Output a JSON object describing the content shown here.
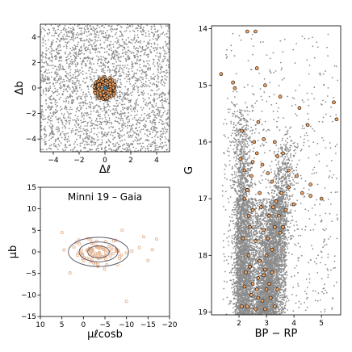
{
  "chart_data": [
    {
      "type": "scatter",
      "panel": "spatial",
      "xlabel": "Δℓ",
      "ylabel": "Δb",
      "xlim": [
        -5,
        5
      ],
      "ylim": [
        -5,
        5
      ],
      "xticks": [
        -4,
        -2,
        0,
        2,
        4
      ],
      "yticks": [
        -4,
        -2,
        0,
        2,
        4
      ],
      "field_color": "#8c8c8c",
      "member_color": "#f4a460",
      "member_edge": "#000000",
      "center_marker_color": "#1f77b4",
      "member_region_radius": 0.9
    },
    {
      "type": "scatter",
      "panel": "proper-motion",
      "title": "Minni 19  –  Gaia",
      "xlabel": "μℓcosb",
      "ylabel": "μb",
      "xlim": [
        10,
        -20
      ],
      "ylim": [
        -15,
        15
      ],
      "xticks": [
        10,
        5,
        0,
        -5,
        -10,
        -15,
        -20
      ],
      "yticks": [
        -15,
        -10,
        -5,
        0,
        5,
        10,
        15
      ],
      "member_center": [
        -3.5,
        0.0
      ],
      "contours": [
        {
          "rx": 2.5,
          "ry": 1.4
        },
        {
          "rx": 4.5,
          "ry": 2.3
        },
        {
          "rx": 7.0,
          "ry": 3.4
        }
      ],
      "point_color": "#e6b490",
      "contour_color": "#555566",
      "outliers": [
        [
          -17,
          3.0
        ],
        [
          -14,
          3.5
        ],
        [
          -13,
          1.0
        ],
        [
          -10,
          -11.5
        ],
        [
          -15,
          -2.0
        ],
        [
          -9,
          5.0
        ],
        [
          5,
          4.5
        ],
        [
          -16,
          0.5
        ]
      ]
    },
    {
      "type": "scatter",
      "panel": "cmd",
      "xlabel": "BP − RP",
      "ylabel": "G",
      "xlim": [
        1.0,
        5.7
      ],
      "ylim": [
        19.05,
        13.95
      ],
      "xticks": [
        2,
        3,
        4,
        5
      ],
      "yticks": [
        14,
        15,
        16,
        17,
        18,
        19
      ],
      "field_color": "#8c8c8c",
      "member_color": "#f4a460",
      "members": [
        [
          1.35,
          14.8
        ],
        [
          1.78,
          14.95
        ],
        [
          1.85,
          15.05
        ],
        [
          2.3,
          14.05
        ],
        [
          2.6,
          14.05
        ],
        [
          2.65,
          14.7
        ],
        [
          2.95,
          15.0
        ],
        [
          3.5,
          15.2
        ],
        [
          4.2,
          15.4
        ],
        [
          4.5,
          15.7
        ],
        [
          5.45,
          15.3
        ],
        [
          5.55,
          15.6
        ],
        [
          2.1,
          15.8
        ],
        [
          2.7,
          15.65
        ],
        [
          2.9,
          15.95
        ],
        [
          3.3,
          16.0
        ],
        [
          3.4,
          16.25
        ],
        [
          3.6,
          16.2
        ],
        [
          3.8,
          16.5
        ],
        [
          4.1,
          16.6
        ],
        [
          4.3,
          16.9
        ],
        [
          4.6,
          16.95
        ],
        [
          5.0,
          17.0
        ],
        [
          4.6,
          16.75
        ],
        [
          4.0,
          17.1
        ],
        [
          3.8,
          16.8
        ],
        [
          3.55,
          16.9
        ],
        [
          3.2,
          16.7
        ],
        [
          2.85,
          16.4
        ],
        [
          2.65,
          16.2
        ],
        [
          2.2,
          16.5
        ],
        [
          2.45,
          16.6
        ],
        [
          2.75,
          16.9
        ],
        [
          3.1,
          17.3
        ],
        [
          3.3,
          17.5
        ],
        [
          3.45,
          17.3
        ],
        [
          3.5,
          17.6
        ],
        [
          3.2,
          17.9
        ],
        [
          3.0,
          18.0
        ],
        [
          2.9,
          17.55
        ],
        [
          2.6,
          17.75
        ],
        [
          2.35,
          18.0
        ],
        [
          2.25,
          18.3
        ],
        [
          2.5,
          18.5
        ],
        [
          2.7,
          18.4
        ],
        [
          2.85,
          18.8
        ],
        [
          3.0,
          18.6
        ],
        [
          3.2,
          18.3
        ],
        [
          3.3,
          18.9
        ],
        [
          2.6,
          18.95
        ],
        [
          2.3,
          18.9
        ],
        [
          2.1,
          18.9
        ],
        [
          2.45,
          18.7
        ],
        [
          2.75,
          18.1
        ],
        [
          3.1,
          18.5
        ],
        [
          2.95,
          18.25
        ],
        [
          2.5,
          17.2
        ],
        [
          2.4,
          17.5
        ],
        [
          2.2,
          17.0
        ],
        [
          2.3,
          16.85
        ],
        [
          2.05,
          16.3
        ],
        [
          3.35,
          17.05
        ],
        [
          3.7,
          17.2
        ],
        [
          3.05,
          16.55
        ],
        [
          2.55,
          16.0
        ],
        [
          2.15,
          17.7
        ],
        [
          2.2,
          18.55
        ],
        [
          2.65,
          18.6
        ],
        [
          2.95,
          18.95
        ],
        [
          3.15,
          18.75
        ],
        [
          3.4,
          18.6
        ],
        [
          2.35,
          17.3
        ],
        [
          2.8,
          17.15
        ],
        [
          3.6,
          17.5
        ],
        [
          2.5,
          16.35
        ],
        [
          2.7,
          18.75
        ],
        [
          2.9,
          18.35
        ],
        [
          2.4,
          18.2
        ],
        [
          3.05,
          17.7
        ],
        [
          3.25,
          17.15
        ]
      ]
    }
  ]
}
